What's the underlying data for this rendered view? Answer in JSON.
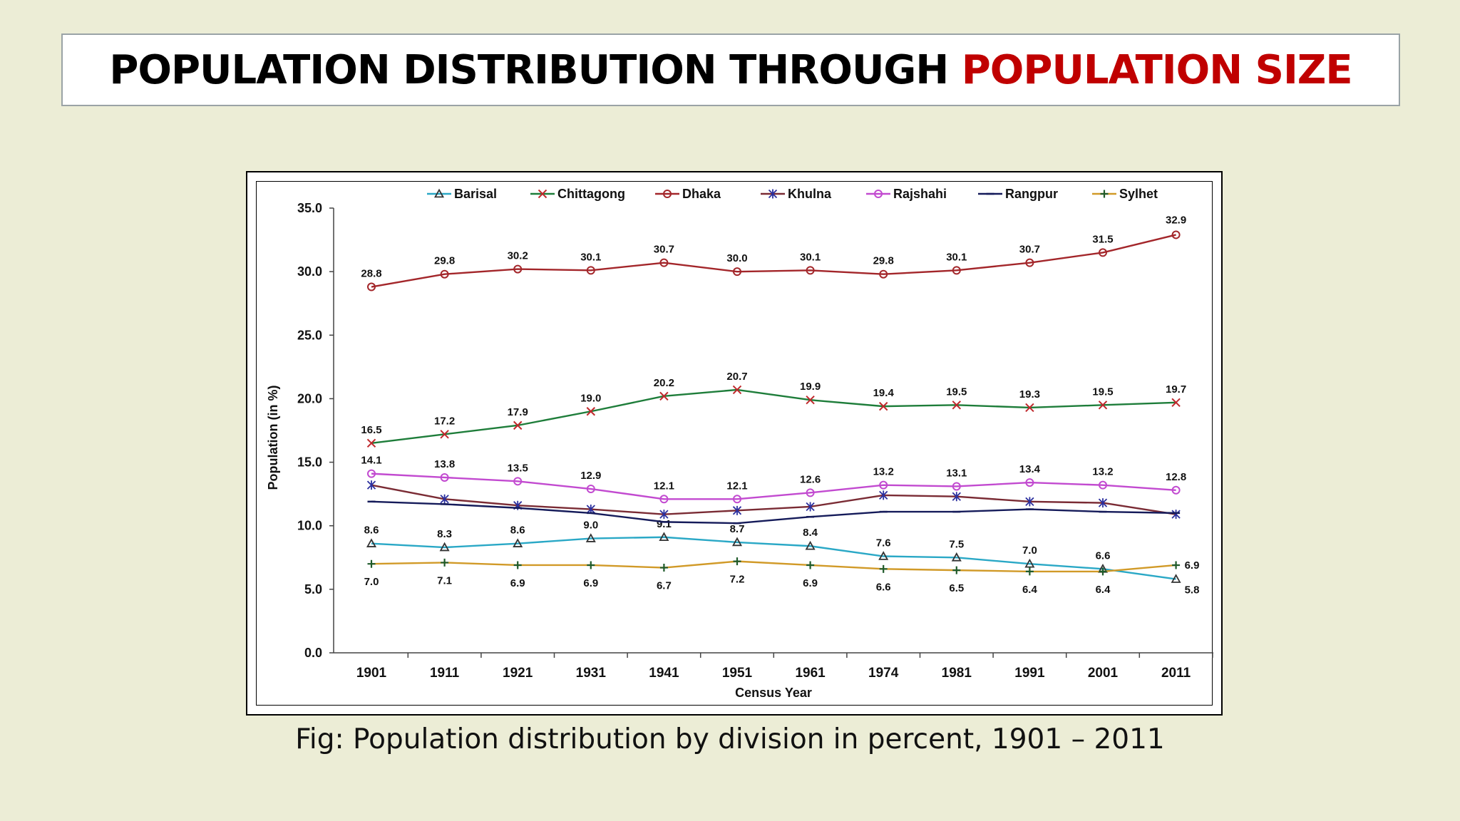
{
  "slide": {
    "title_main": "POPULATION DISTRIBUTION THROUGH",
    "title_accent": "POPULATION SIZE",
    "caption": "Fig: Population distribution by division in percent, 1901 – 2011",
    "colors": {
      "background": "#ecedd6",
      "accent": "#c00000"
    }
  },
  "chart_data": {
    "type": "line",
    "xlabel": "Census Year",
    "ylabel": "Population (in %)",
    "ylim": [
      0,
      35
    ],
    "yticks": [
      "0.0",
      "5.0",
      "10.0",
      "15.0",
      "20.0",
      "25.0",
      "30.0",
      "35.0"
    ],
    "categories": [
      "1901",
      "1911",
      "1921",
      "1931",
      "1941",
      "1951",
      "1961",
      "1974",
      "1981",
      "1991",
      "2001",
      "2011"
    ],
    "legend_position": "top",
    "grid": false,
    "series": [
      {
        "name": "Barisal",
        "color": "#2aa8c6",
        "marker": "triangle",
        "values": [
          8.6,
          8.3,
          8.6,
          9.0,
          9.1,
          8.7,
          8.4,
          7.6,
          7.5,
          7.0,
          6.6,
          5.8
        ],
        "labels": [
          "8.6",
          "8.3",
          "8.6",
          "9.0",
          "9.1",
          "8.7",
          "8.4",
          "7.6",
          "7.5",
          "7.0",
          "6.6",
          "5.8"
        ]
      },
      {
        "name": "Chittagong",
        "color": "#1e7d3a",
        "marker": "x",
        "values": [
          16.5,
          17.2,
          17.9,
          19.0,
          20.2,
          20.7,
          19.9,
          19.4,
          19.5,
          19.3,
          19.5,
          19.7
        ],
        "labels": [
          "16.5",
          "17.2",
          "17.9",
          "19.0",
          "20.2",
          "20.7",
          "19.9",
          "19.4",
          "19.5",
          "19.3",
          "19.5",
          "19.7"
        ]
      },
      {
        "name": "Dhaka",
        "color": "#a3262a",
        "marker": "circle",
        "values": [
          28.8,
          29.8,
          30.2,
          30.1,
          30.7,
          30.0,
          30.1,
          29.8,
          30.1,
          30.7,
          31.5,
          32.9
        ],
        "labels": [
          "28.8",
          "29.8",
          "30.2",
          "30.1",
          "30.7",
          "30.0",
          "30.1",
          "29.8",
          "30.1",
          "30.7",
          "31.5",
          "32.9"
        ]
      },
      {
        "name": "Khulna",
        "color": "#7a2b34",
        "marker": "star",
        "values": [
          13.2,
          12.1,
          11.6,
          11.3,
          10.9,
          11.2,
          11.5,
          12.4,
          12.3,
          11.9,
          11.8,
          10.9
        ],
        "labels": []
      },
      {
        "name": "Rajshahi",
        "color": "#c24ad0",
        "marker": "circle",
        "values": [
          14.1,
          13.8,
          13.5,
          12.9,
          12.1,
          12.1,
          12.6,
          13.2,
          13.1,
          13.4,
          13.2,
          12.8
        ],
        "labels": [
          "14.1",
          "13.8",
          "13.5",
          "12.9",
          "12.1",
          "12.1",
          "12.6",
          "13.2",
          "13.1",
          "13.4",
          "13.2",
          "12.8"
        ]
      },
      {
        "name": "Rangpur",
        "color": "#151b5a",
        "marker": "dash",
        "values": [
          11.9,
          11.7,
          11.4,
          11.0,
          10.3,
          10.2,
          10.7,
          11.1,
          11.1,
          11.3,
          11.1,
          11.0
        ],
        "labels": []
      },
      {
        "name": "Sylhet",
        "color": "#d19a28",
        "marker": "plus",
        "values": [
          7.0,
          7.1,
          6.9,
          6.9,
          6.7,
          7.2,
          6.9,
          6.6,
          6.5,
          6.4,
          6.4,
          6.9
        ],
        "labels": [
          "7.0",
          "7.1",
          "6.9",
          "6.9",
          "6.7",
          "7.2",
          "6.9",
          "6.6",
          "6.5",
          "6.4",
          "6.4",
          "6.9"
        ]
      }
    ]
  }
}
